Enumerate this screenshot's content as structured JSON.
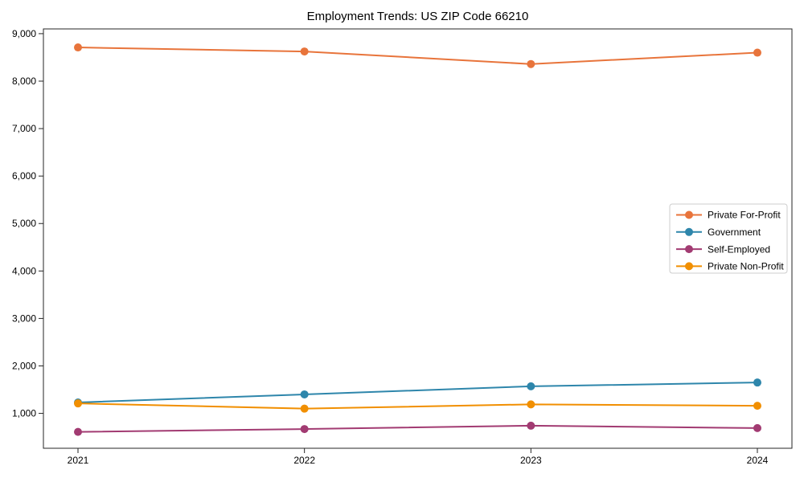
{
  "title": "Employment Trends: US ZIP Code 66210",
  "chart_data": {
    "type": "line",
    "title": "Employment Trends: US ZIP Code 66210",
    "xlabel": "",
    "ylabel": "",
    "x_labels": [
      "2021",
      "2022",
      "2023",
      "2024"
    ],
    "series": [
      {
        "name": "Private For-Profit",
        "color": "#E8743B",
        "values": [
          8710,
          8625,
          8360,
          8600
        ]
      },
      {
        "name": "Government",
        "color": "#2E86AB",
        "values": [
          1230,
          1400,
          1570,
          1650
        ]
      },
      {
        "name": "Self-Employed",
        "color": "#A23B72",
        "values": [
          610,
          670,
          740,
          690
        ]
      },
      {
        "name": "Private Non-Profit",
        "color": "#F18F01",
        "values": [
          1210,
          1100,
          1190,
          1160
        ]
      }
    ],
    "yticks": [
      1000,
      2000,
      3000,
      4000,
      5000,
      6000,
      7000,
      8000,
      9000
    ],
    "ytick_labels": [
      "1,000",
      "2,000",
      "3,000",
      "4,000",
      "5,000",
      "6,000",
      "7,000",
      "8,000",
      "9,000"
    ],
    "ylim": [
      265,
      9100
    ],
    "grid": false,
    "legend": {
      "position": "center-right",
      "entries": [
        "Private For-Profit",
        "Government",
        "Self-Employed",
        "Private Non-Profit"
      ]
    },
    "axis_color": "#262626",
    "legend_border_color": "#cccccc",
    "background_color": "#ffffff"
  }
}
